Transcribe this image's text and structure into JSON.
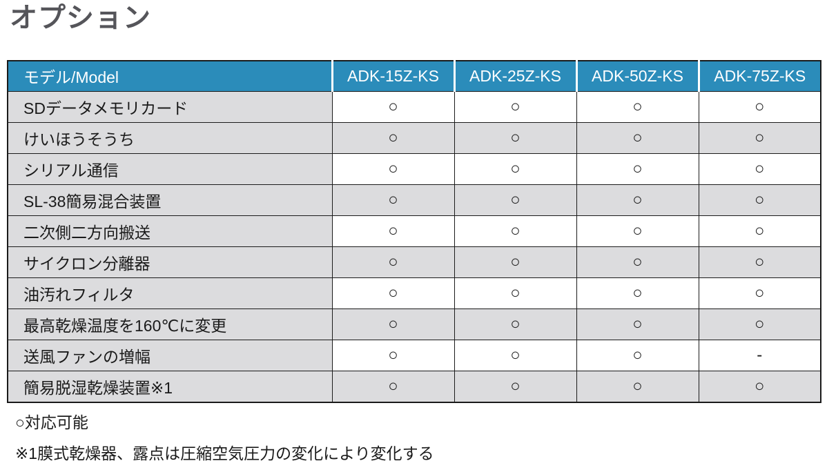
{
  "page_title": "オプション",
  "colors": {
    "header_bg": "#2b8cba",
    "header_text": "#ffffff",
    "row_gray": "#dcdcde",
    "grid_border": "#1a1a1a",
    "title_text": "#55555a",
    "page_bg": "#ffffff"
  },
  "table": {
    "header": [
      "モデル/Model",
      "ADK-15Z-KS",
      "ADK-25Z-KS",
      "ADK-50Z-KS",
      "ADK-75Z-KS"
    ],
    "marks": {
      "available": "○",
      "not_available": "-"
    },
    "rows": [
      {
        "label": "SDデータメモリカード",
        "values": [
          "○",
          "○",
          "○",
          "○"
        ]
      },
      {
        "label": "けいほうそうち",
        "values": [
          "○",
          "○",
          "○",
          "○"
        ]
      },
      {
        "label": "シリアル通信",
        "values": [
          "○",
          "○",
          "○",
          "○"
        ]
      },
      {
        "label": "SL-38簡易混合装置",
        "values": [
          "○",
          "○",
          "○",
          "○"
        ]
      },
      {
        "label": "二次側二方向搬送",
        "values": [
          "○",
          "○",
          "○",
          "○"
        ]
      },
      {
        "label": "サイクロン分離器",
        "values": [
          "○",
          "○",
          "○",
          "○"
        ]
      },
      {
        "label": "油汚れフィルタ",
        "values": [
          "○",
          "○",
          "○",
          "○"
        ]
      },
      {
        "label": "最高乾燥温度を160℃に変更",
        "values": [
          "○",
          "○",
          "○",
          "○"
        ]
      },
      {
        "label": "送風ファンの増幅",
        "values": [
          "○",
          "○",
          "○",
          "-"
        ]
      },
      {
        "label": "簡易脱湿乾燥装置※1",
        "values": [
          "○",
          "○",
          "○",
          "○"
        ]
      }
    ]
  },
  "legend": {
    "available": "○対応可能",
    "note": "※1膜式乾燥器、露点は圧縮空気圧力の変化により変化する"
  }
}
